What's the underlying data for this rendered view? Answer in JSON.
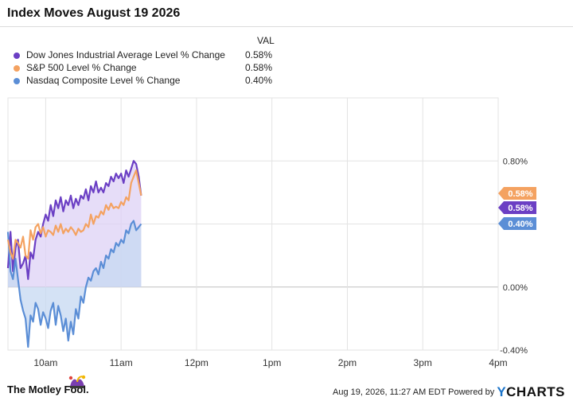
{
  "header": {
    "title": "Index Moves August 19 2026"
  },
  "legend": {
    "value_header": "VAL",
    "items": [
      {
        "name": "Dow Jones Industrial Average Level % Change",
        "value": "0.58%",
        "color": "#6b3fc4"
      },
      {
        "name": "S&P 500 Level % Change",
        "value": "0.58%",
        "color": "#f4a261"
      },
      {
        "name": "Nasdaq Composite Level % Change",
        "value": "0.40%",
        "color": "#5b8ed6"
      }
    ]
  },
  "chart_data": {
    "type": "line",
    "title": "Index Moves August 19 2026",
    "x_tick_labels": [
      "10am",
      "11am",
      "12pm",
      "1pm",
      "2pm",
      "3pm",
      "4pm"
    ],
    "y_tick_labels": [
      "0.80%",
      "0.00%",
      "-0.40%"
    ],
    "ylim": [
      -0.4,
      1.2
    ],
    "x_range": [
      "09:30",
      "16:00"
    ],
    "grid": true,
    "legend_position": "top-left",
    "end_labels": [
      "0.58%",
      "0.58%",
      "0.40%"
    ],
    "series": [
      {
        "name": "Dow Jones Industrial Average Level % Change",
        "color": "#6b3fc4",
        "times": [
          "09:30",
          "09:32",
          "09:34",
          "09:36",
          "09:38",
          "09:40",
          "09:42",
          "09:44",
          "09:46",
          "09:48",
          "09:50",
          "09:52",
          "09:54",
          "09:56",
          "09:58",
          "10:00",
          "10:02",
          "10:04",
          "10:06",
          "10:08",
          "10:10",
          "10:12",
          "10:14",
          "10:16",
          "10:18",
          "10:20",
          "10:22",
          "10:24",
          "10:26",
          "10:28",
          "10:30",
          "10:32",
          "10:34",
          "10:36",
          "10:38",
          "10:40",
          "10:42",
          "10:44",
          "10:46",
          "10:48",
          "10:50",
          "10:52",
          "10:54",
          "10:56",
          "10:58",
          "11:00",
          "11:02",
          "11:04",
          "11:06",
          "11:08",
          "11:10",
          "11:12",
          "11:14",
          "11:16"
        ],
        "values": [
          0.12,
          0.35,
          0.1,
          0.25,
          0.3,
          0.12,
          0.15,
          0.2,
          0.05,
          0.22,
          0.18,
          0.3,
          0.35,
          0.32,
          0.4,
          0.46,
          0.42,
          0.52,
          0.45,
          0.55,
          0.5,
          0.57,
          0.48,
          0.55,
          0.52,
          0.58,
          0.5,
          0.56,
          0.52,
          0.58,
          0.56,
          0.62,
          0.55,
          0.64,
          0.6,
          0.67,
          0.6,
          0.63,
          0.6,
          0.66,
          0.64,
          0.7,
          0.67,
          0.72,
          0.69,
          0.72,
          0.66,
          0.74,
          0.7,
          0.75,
          0.8,
          0.78,
          0.7,
          0.58
        ]
      },
      {
        "name": "S&P 500 Level % Change",
        "color": "#f4a261",
        "times": [
          "09:30",
          "09:32",
          "09:34",
          "09:36",
          "09:38",
          "09:40",
          "09:42",
          "09:44",
          "09:46",
          "09:48",
          "09:50",
          "09:52",
          "09:54",
          "09:56",
          "09:58",
          "10:00",
          "10:02",
          "10:04",
          "10:06",
          "10:08",
          "10:10",
          "10:12",
          "10:14",
          "10:16",
          "10:18",
          "10:20",
          "10:22",
          "10:24",
          "10:26",
          "10:28",
          "10:30",
          "10:32",
          "10:34",
          "10:36",
          "10:38",
          "10:40",
          "10:42",
          "10:44",
          "10:46",
          "10:48",
          "10:50",
          "10:52",
          "10:54",
          "10:56",
          "10:58",
          "11:00",
          "11:02",
          "11:04",
          "11:06",
          "11:08",
          "11:10",
          "11:12",
          "11:14",
          "11:16"
        ],
        "values": [
          0.3,
          0.22,
          0.18,
          0.3,
          0.28,
          0.25,
          0.32,
          0.2,
          0.18,
          0.36,
          0.3,
          0.38,
          0.4,
          0.34,
          0.38,
          0.32,
          0.36,
          0.35,
          0.33,
          0.39,
          0.35,
          0.4,
          0.34,
          0.37,
          0.35,
          0.38,
          0.36,
          0.33,
          0.37,
          0.35,
          0.36,
          0.4,
          0.38,
          0.46,
          0.4,
          0.45,
          0.44,
          0.48,
          0.46,
          0.52,
          0.49,
          0.53,
          0.5,
          0.51,
          0.5,
          0.54,
          0.52,
          0.57,
          0.55,
          0.66,
          0.7,
          0.74,
          0.66,
          0.58
        ]
      },
      {
        "name": "Nasdaq Composite Level % Change",
        "color": "#5b8ed6",
        "times": [
          "09:30",
          "09:32",
          "09:34",
          "09:36",
          "09:38",
          "09:40",
          "09:42",
          "09:44",
          "09:46",
          "09:48",
          "09:50",
          "09:52",
          "09:54",
          "09:56",
          "09:58",
          "10:00",
          "10:02",
          "10:04",
          "10:06",
          "10:08",
          "10:10",
          "10:12",
          "10:14",
          "10:16",
          "10:18",
          "10:20",
          "10:22",
          "10:24",
          "10:26",
          "10:28",
          "10:30",
          "10:32",
          "10:34",
          "10:36",
          "10:38",
          "10:40",
          "10:42",
          "10:44",
          "10:46",
          "10:48",
          "10:50",
          "10:52",
          "10:54",
          "10:56",
          "10:58",
          "11:00",
          "11:02",
          "11:04",
          "11:06",
          "11:08",
          "11:10",
          "11:12",
          "11:14",
          "11:16"
        ],
        "values": [
          0.35,
          0.1,
          0.05,
          0.18,
          0.05,
          -0.08,
          -0.15,
          -0.2,
          -0.38,
          -0.18,
          -0.22,
          -0.1,
          -0.14,
          -0.24,
          -0.16,
          -0.2,
          -0.26,
          -0.15,
          -0.1,
          -0.24,
          -0.12,
          -0.18,
          -0.28,
          -0.2,
          -0.34,
          -0.22,
          -0.3,
          -0.14,
          -0.2,
          -0.06,
          -0.1,
          0.0,
          0.06,
          0.04,
          0.1,
          0.12,
          0.08,
          0.16,
          0.12,
          0.2,
          0.18,
          0.24,
          0.22,
          0.28,
          0.26,
          0.3,
          0.28,
          0.36,
          0.34,
          0.4,
          0.42,
          0.36,
          0.38,
          0.4
        ]
      }
    ]
  },
  "footer": {
    "brand_left": "The Motley Fool.",
    "timestamp": "Aug 19, 2026, 11:27 AM EDT",
    "powered_by": "Powered by",
    "brand_right_y": "Y",
    "brand_right_rest": "CHARTS"
  },
  "colors": {
    "grid": "#e3e3e3",
    "axis_text": "#333333",
    "fill_purple": "#ddd2f5",
    "fill_blue": "#c6d8f2"
  },
  "icons": {
    "fool_logo": "jester-hat-icon"
  }
}
